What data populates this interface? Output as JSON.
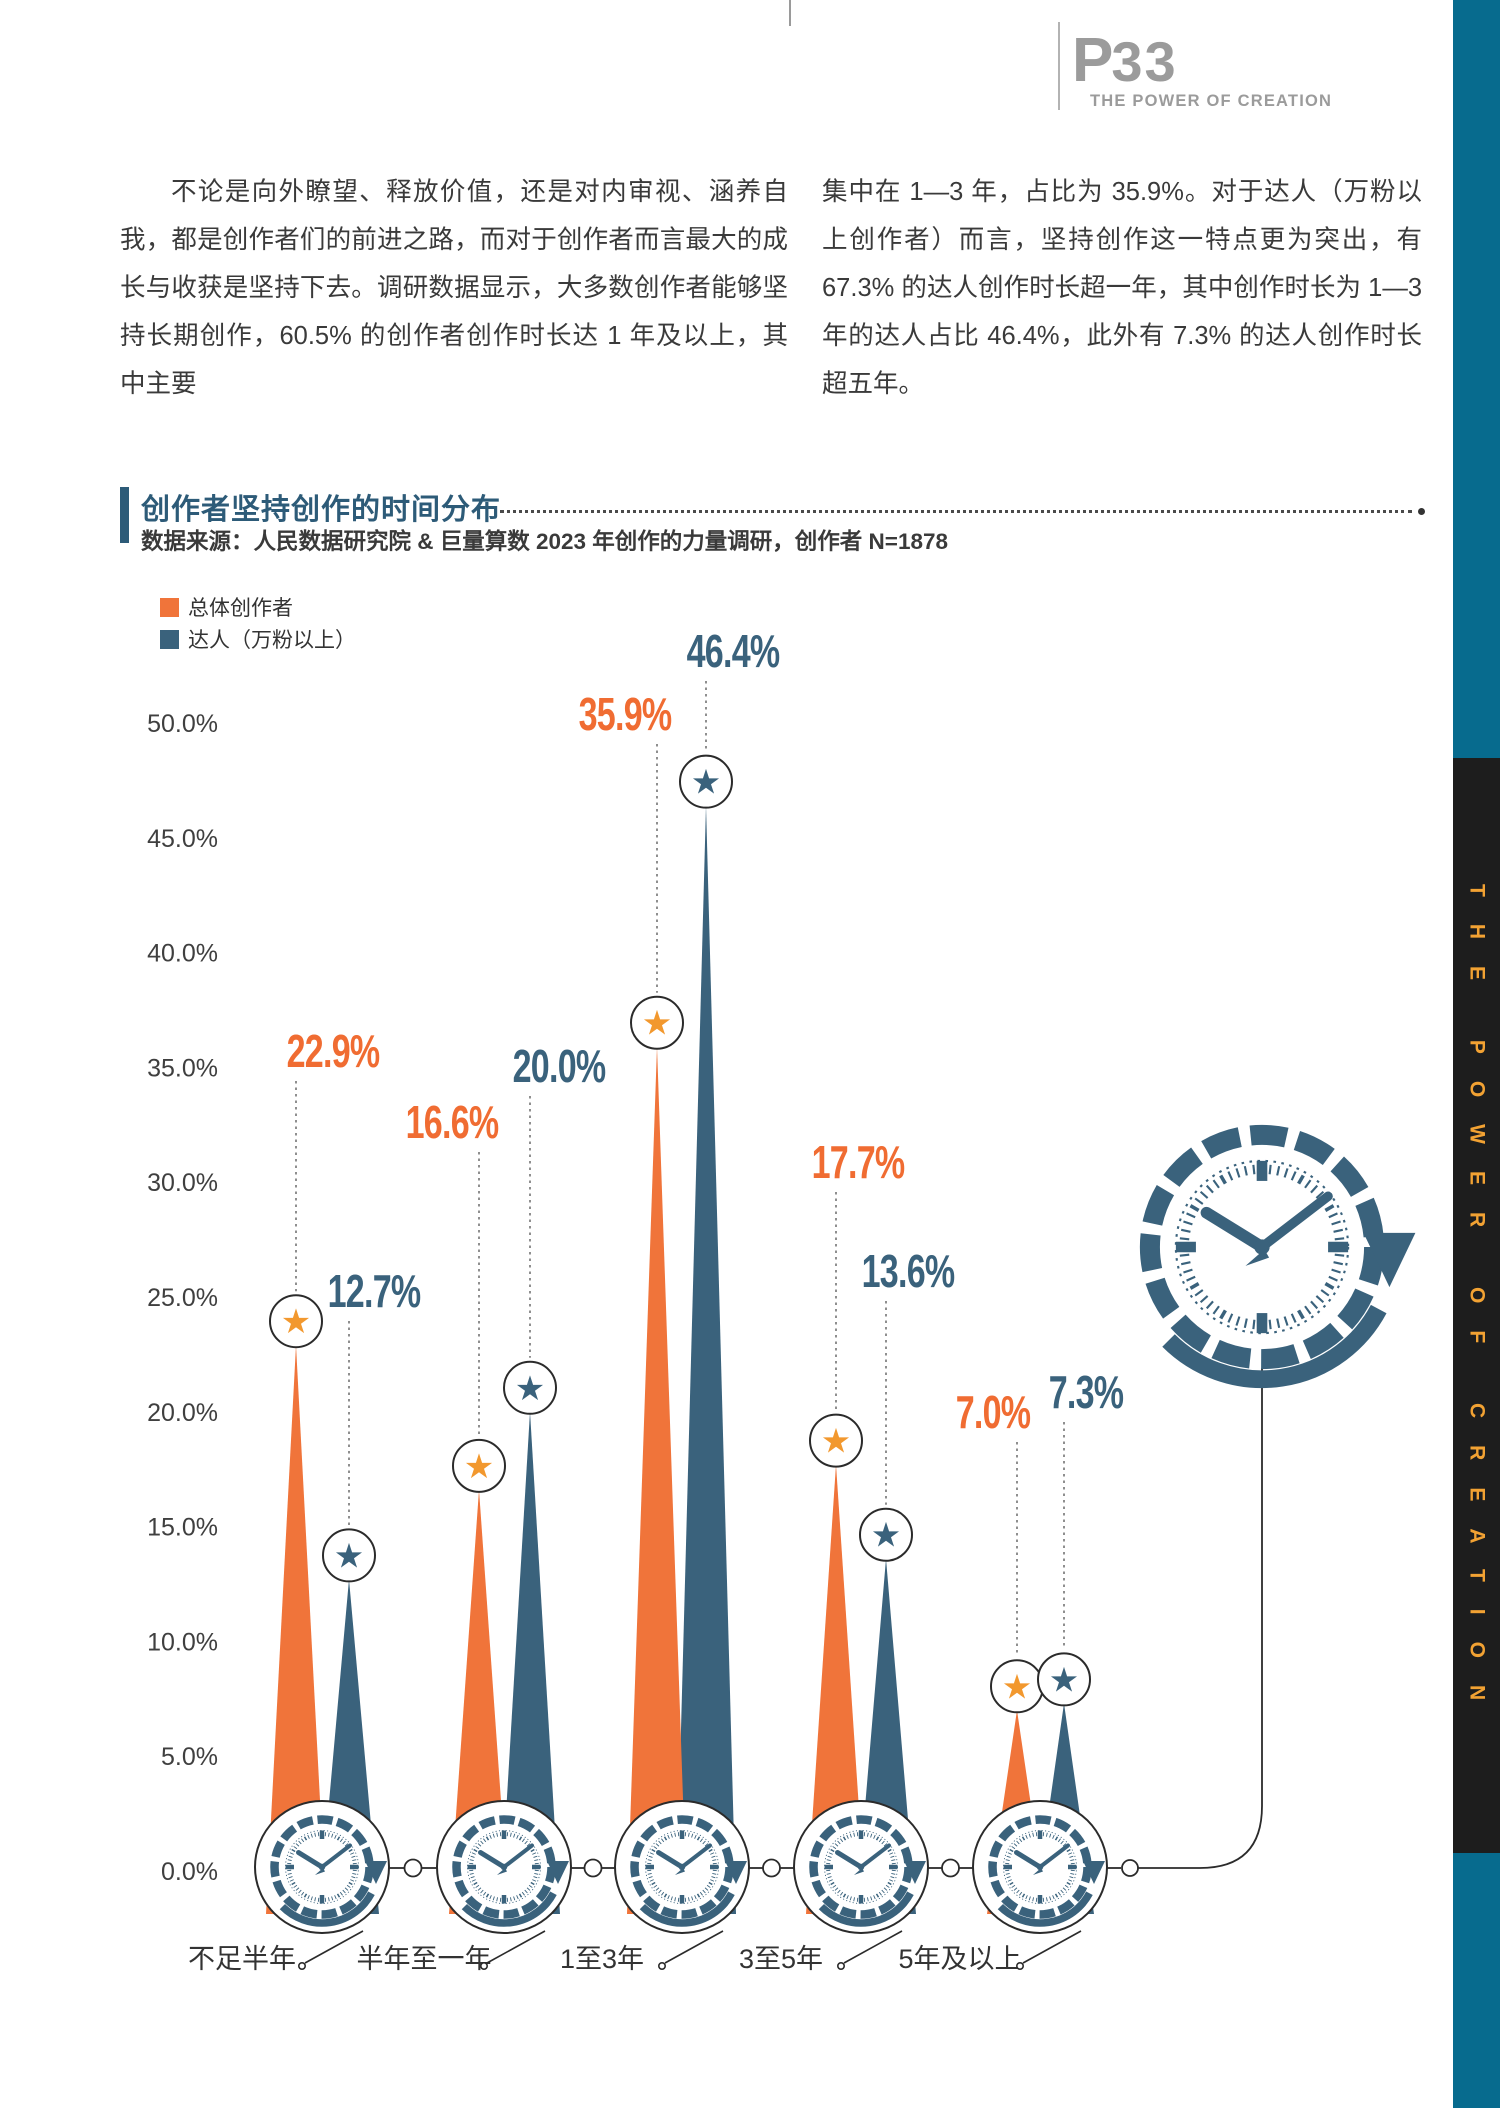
{
  "header": {
    "logo_p": "P",
    "logo_number": "33",
    "logo_subtitle": "THE POWER OF CREATION"
  },
  "sidebar": {
    "vertical_text": "THE POWER OF CREATION"
  },
  "intro": {
    "left_paragraph": "不论是向外瞭望、释放价值，还是对内审视、涵养自我，都是创作者们的前进之路，而对于创作者而言最大的成长与收获是坚持下去。调研数据显示，大多数创作者能够坚持长期创作，60.5% 的创作者创作时长达 1 年及以上，其中主要",
    "right_paragraph": "集中在 1—3 年，占比为 35.9%。对于达人（万粉以上创作者）而言，坚持创作这一特点更为突出，有 67.3% 的达人创作时长超一年，其中创作时长为 1—3 年的达人占比 46.4%，此外有 7.3% 的达人创作时长超五年。"
  },
  "section": {
    "title": "创作者坚持创作的时间分布",
    "source": "数据来源：人民数据研究院 & 巨量算数 2023 年创作的力量调研，创作者 N=1878"
  },
  "chart_data": {
    "type": "bar",
    "shape": "triangle-spike",
    "title": "创作者坚持创作的时间分布",
    "categories": [
      "不足半年",
      "半年至一年",
      "1至3年",
      "3至5年",
      "5年及以上"
    ],
    "series": [
      {
        "name": "总体创作者",
        "color": "#F0743A",
        "label_color": "#F06C32",
        "star_color": "#F2982E",
        "values": [
          22.9,
          16.6,
          35.9,
          17.7,
          7.0
        ]
      },
      {
        "name": "达人（万粉以上）",
        "color": "#3A627C",
        "label_color": "#3A627C",
        "star_color": "#3A627C",
        "values": [
          12.7,
          20.0,
          46.4,
          13.6,
          7.3
        ]
      }
    ],
    "xlabel": "",
    "ylabel": "",
    "ylim": [
      0,
      50
    ],
    "ytick_step": 5,
    "ytick_format": "0.0%",
    "value_label_format": "0.0%",
    "grid": false,
    "legend_position": "top-left",
    "accent_colors": {
      "clock": "#3A627C",
      "leader_line": "#8f8f8f",
      "axis_text": "#3f3f3f",
      "outline": "#2b2b2b"
    }
  }
}
